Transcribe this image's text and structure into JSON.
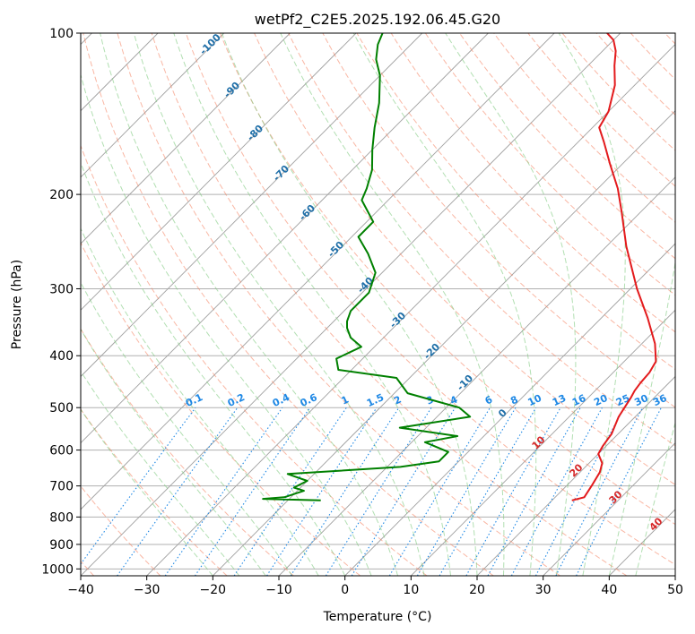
{
  "chart_data": {
    "type": "line",
    "title": "wetPf2_C2E5.2025.192.06.45.G20",
    "xlabel": "Temperature (°C)",
    "ylabel": "Pressure (hPa)",
    "xlim": [
      -40,
      50
    ],
    "ylim": [
      1030,
      100
    ],
    "y_scale": "log",
    "skew": true,
    "grid": true,
    "x_ticks": [
      "−40",
      "−30",
      "−20",
      "−10",
      "0",
      "10",
      "20",
      "30",
      "40",
      "50"
    ],
    "y_ticks": [
      "100",
      "200",
      "300",
      "400",
      "500",
      "600",
      "700",
      "800",
      "900",
      "1000"
    ],
    "colors": {
      "temperature": "#e31a1c",
      "dewpoint": "#008000",
      "dry_adiabat": "#f47c5a",
      "moist_adiabat": "#7fc97f",
      "mixing_ratio": "#1e88e5",
      "isotherm": "#999999",
      "dry_adiabat_label": "#1f6fa8",
      "moist_adiabat_label": "#d62728"
    },
    "series": [
      {
        "key": "temperature",
        "points": [
          [
            23,
            745
          ],
          [
            24.4,
            735
          ],
          [
            23.8,
            700
          ],
          [
            23,
            660
          ],
          [
            22,
            635
          ],
          [
            20,
            610
          ],
          [
            19.5,
            590
          ],
          [
            19,
            560
          ],
          [
            17.5,
            520
          ],
          [
            17,
            500
          ],
          [
            16.5,
            480
          ],
          [
            16,
            465
          ],
          [
            15.7,
            450
          ],
          [
            15.5,
            430
          ],
          [
            14.8,
            410
          ],
          [
            12,
            380
          ],
          [
            7,
            340
          ],
          [
            1,
            300
          ],
          [
            -7,
            250
          ],
          [
            -13,
            215
          ],
          [
            -17,
            195
          ],
          [
            -22,
            175
          ],
          [
            -26,
            160
          ],
          [
            -29,
            150
          ],
          [
            -30,
            140
          ],
          [
            -33,
            125
          ],
          [
            -36,
            115
          ],
          [
            -38,
            108
          ],
          [
            -40,
            103
          ],
          [
            -42,
            100
          ]
        ]
      },
      {
        "key": "dewpoint",
        "points": [
          [
            -15,
            745
          ],
          [
            -24,
            740
          ],
          [
            -21,
            735
          ],
          [
            -19,
            715
          ],
          [
            -21,
            705
          ],
          [
            -20,
            685
          ],
          [
            -24,
            665
          ],
          [
            -8,
            645
          ],
          [
            -3,
            630
          ],
          [
            -3,
            605
          ],
          [
            -8,
            580
          ],
          [
            -4,
            565
          ],
          [
            -14,
            545
          ],
          [
            -5,
            520
          ],
          [
            -8,
            500
          ],
          [
            -18,
            470
          ],
          [
            -22,
            440
          ],
          [
            -32,
            425
          ],
          [
            -34,
            405
          ],
          [
            -32,
            385
          ],
          [
            -35,
            370
          ],
          [
            -37,
            355
          ],
          [
            -38,
            345
          ],
          [
            -39,
            330
          ],
          [
            -39,
            305
          ],
          [
            -41,
            280
          ],
          [
            -45,
            258
          ],
          [
            -49,
            240
          ],
          [
            -49,
            225
          ],
          [
            -54,
            205
          ],
          [
            -55,
            195
          ],
          [
            -57,
            180
          ],
          [
            -60,
            165
          ],
          [
            -63,
            150
          ],
          [
            -66,
            135
          ],
          [
            -70,
            120
          ],
          [
            -73,
            112
          ],
          [
            -75,
            105
          ],
          [
            -76,
            100
          ]
        ]
      }
    ],
    "mixing_ratio_labels": [
      "0.1",
      "0.2",
      "0.4",
      "0.6",
      "1",
      "1.5",
      "2",
      "3",
      "4",
      "6",
      "8",
      "10",
      "13",
      "16",
      "20",
      "25",
      "30",
      "36"
    ],
    "dry_adiabat_labels": [
      "-100",
      "-90",
      "-80",
      "-70",
      "-60",
      "-50",
      "-40",
      "-30",
      "-20",
      "-10",
      "0"
    ],
    "moist_adiabat_labels": [
      "10",
      "20",
      "30",
      "40"
    ]
  }
}
